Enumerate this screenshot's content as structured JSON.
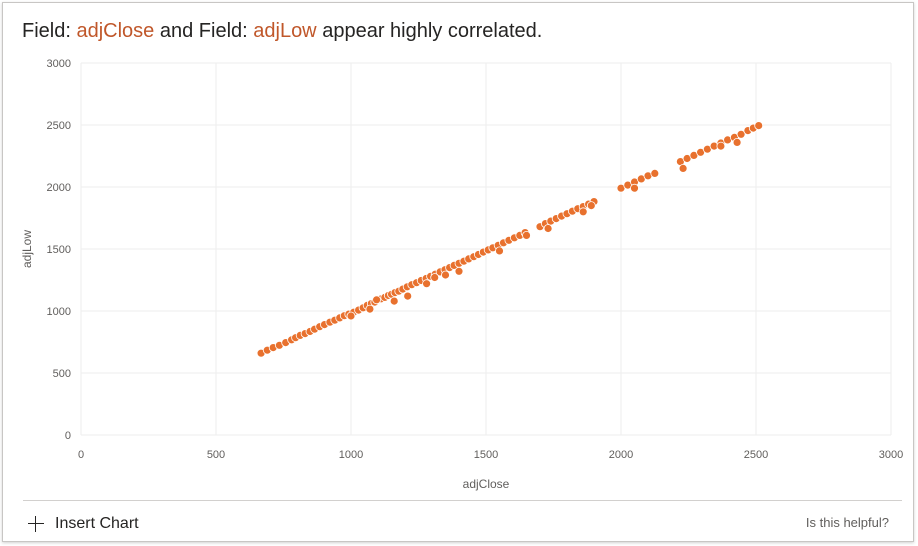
{
  "title": {
    "prefix": "Field: ",
    "field1": "adjClose",
    "middle": " and Field: ",
    "field2": "adjLow",
    "suffix": " appear highly correlated."
  },
  "footer": {
    "insert_chart_label": "Insert Chart",
    "helpful_label": "Is this helpful?"
  },
  "colors": {
    "accent": "#e8712e",
    "field_text": "#c0572a"
  },
  "chart_data": {
    "type": "scatter",
    "title": "",
    "xlabel": "adjClose",
    "ylabel": "adjLow",
    "xlim": [
      0,
      3000
    ],
    "ylim": [
      0,
      3000
    ],
    "xticks": [
      0,
      500,
      1000,
      1500,
      2000,
      2500,
      3000
    ],
    "yticks": [
      0,
      500,
      1000,
      1500,
      2000,
      2500,
      3000
    ],
    "grid": true,
    "legend": "none",
    "series": [
      {
        "color": "#e8712e",
        "points": [
          [
            667,
            660
          ],
          [
            690,
            684
          ],
          [
            712,
            705
          ],
          [
            735,
            723
          ],
          [
            758,
            745
          ],
          [
            780,
            768
          ],
          [
            795,
            785
          ],
          [
            812,
            803
          ],
          [
            830,
            818
          ],
          [
            848,
            835
          ],
          [
            865,
            853
          ],
          [
            884,
            873
          ],
          [
            902,
            890
          ],
          [
            922,
            910
          ],
          [
            940,
            926
          ],
          [
            958,
            944
          ],
          [
            975,
            962
          ],
          [
            992,
            975
          ],
          [
            1010,
            990
          ],
          [
            1028,
            1007
          ],
          [
            1045,
            1026
          ],
          [
            1060,
            1045
          ],
          [
            1075,
            1060
          ],
          [
            1088,
            1072
          ],
          [
            1100,
            1090
          ],
          [
            1112,
            1098
          ],
          [
            1125,
            1110
          ],
          [
            1138,
            1125
          ],
          [
            1150,
            1135
          ],
          [
            1163,
            1148
          ],
          [
            1177,
            1160
          ],
          [
            1192,
            1177
          ],
          [
            1208,
            1195
          ],
          [
            1225,
            1212
          ],
          [
            1243,
            1228
          ],
          [
            1260,
            1246
          ],
          [
            1278,
            1262
          ],
          [
            1295,
            1280
          ],
          [
            1312,
            1297
          ],
          [
            1330,
            1315
          ],
          [
            1348,
            1333
          ],
          [
            1365,
            1350
          ],
          [
            1382,
            1368
          ],
          [
            1400,
            1385
          ],
          [
            1418,
            1402
          ],
          [
            1436,
            1420
          ],
          [
            1455,
            1438
          ],
          [
            1472,
            1456
          ],
          [
            1490,
            1475
          ],
          [
            1508,
            1493
          ],
          [
            1525,
            1510
          ],
          [
            1545,
            1530
          ],
          [
            1565,
            1550
          ],
          [
            1585,
            1570
          ],
          [
            1605,
            1590
          ],
          [
            1625,
            1610
          ],
          [
            1645,
            1632
          ],
          [
            1700,
            1680
          ],
          [
            1720,
            1705
          ],
          [
            1740,
            1725
          ],
          [
            1760,
            1745
          ],
          [
            1780,
            1765
          ],
          [
            1800,
            1785
          ],
          [
            1820,
            1805
          ],
          [
            1840,
            1825
          ],
          [
            1860,
            1842
          ],
          [
            1880,
            1862
          ],
          [
            1900,
            1882
          ],
          [
            2000,
            1990
          ],
          [
            2025,
            2015
          ],
          [
            2050,
            2040
          ],
          [
            2075,
            2065
          ],
          [
            2100,
            2090
          ],
          [
            2125,
            2110
          ],
          [
            2220,
            2205
          ],
          [
            2245,
            2230
          ],
          [
            2270,
            2255
          ],
          [
            2295,
            2280
          ],
          [
            2320,
            2305
          ],
          [
            2345,
            2330
          ],
          [
            2370,
            2355
          ],
          [
            2395,
            2380
          ],
          [
            2420,
            2400
          ],
          [
            2445,
            2425
          ],
          [
            2470,
            2455
          ],
          [
            2490,
            2475
          ],
          [
            2510,
            2495
          ],
          [
            1160,
            1080
          ],
          [
            1095,
            1090
          ],
          [
            1210,
            1120
          ],
          [
            1280,
            1220
          ],
          [
            1310,
            1270
          ],
          [
            1350,
            1290
          ],
          [
            1400,
            1320
          ],
          [
            1550,
            1485
          ],
          [
            1650,
            1610
          ],
          [
            1730,
            1665
          ],
          [
            1860,
            1800
          ],
          [
            1890,
            1850
          ],
          [
            2050,
            1990
          ],
          [
            2230,
            2150
          ],
          [
            2370,
            2330
          ],
          [
            2430,
            2360
          ],
          [
            1070,
            1015
          ],
          [
            1000,
            960
          ]
        ]
      }
    ]
  }
}
